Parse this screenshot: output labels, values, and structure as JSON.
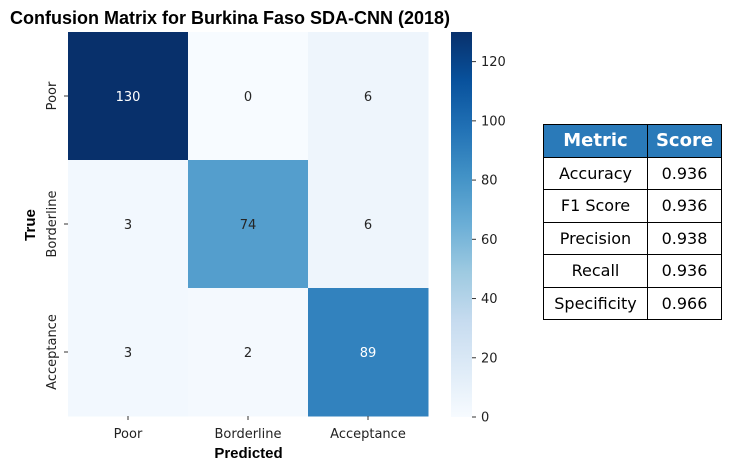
{
  "chart_data": {
    "type": "heatmap",
    "title": "Confusion Matrix for Burkina Faso SDA-CNN (2018)",
    "xlabel": "Predicted",
    "ylabel": "True",
    "x_categories": [
      "Poor",
      "Borderline",
      "Acceptance"
    ],
    "y_categories": [
      "Poor",
      "Borderline",
      "Acceptance"
    ],
    "matrix": [
      [
        130,
        0,
        6
      ],
      [
        3,
        74,
        6
      ],
      [
        3,
        2,
        89
      ]
    ],
    "colorbar": {
      "min": 0,
      "max": 130,
      "ticks": [
        "0",
        "20",
        "40",
        "60",
        "80",
        "100",
        "120"
      ],
      "colormap": "Blues"
    }
  },
  "metrics_table": {
    "headers": [
      "Metric",
      "Score"
    ],
    "rows": [
      [
        "Accuracy",
        "0.936"
      ],
      [
        "F1 Score",
        "0.936"
      ],
      [
        "Precision",
        "0.938"
      ],
      [
        "Recall",
        "0.936"
      ],
      [
        "Specificity",
        "0.966"
      ]
    ],
    "header_color": "#2a7ab9"
  }
}
